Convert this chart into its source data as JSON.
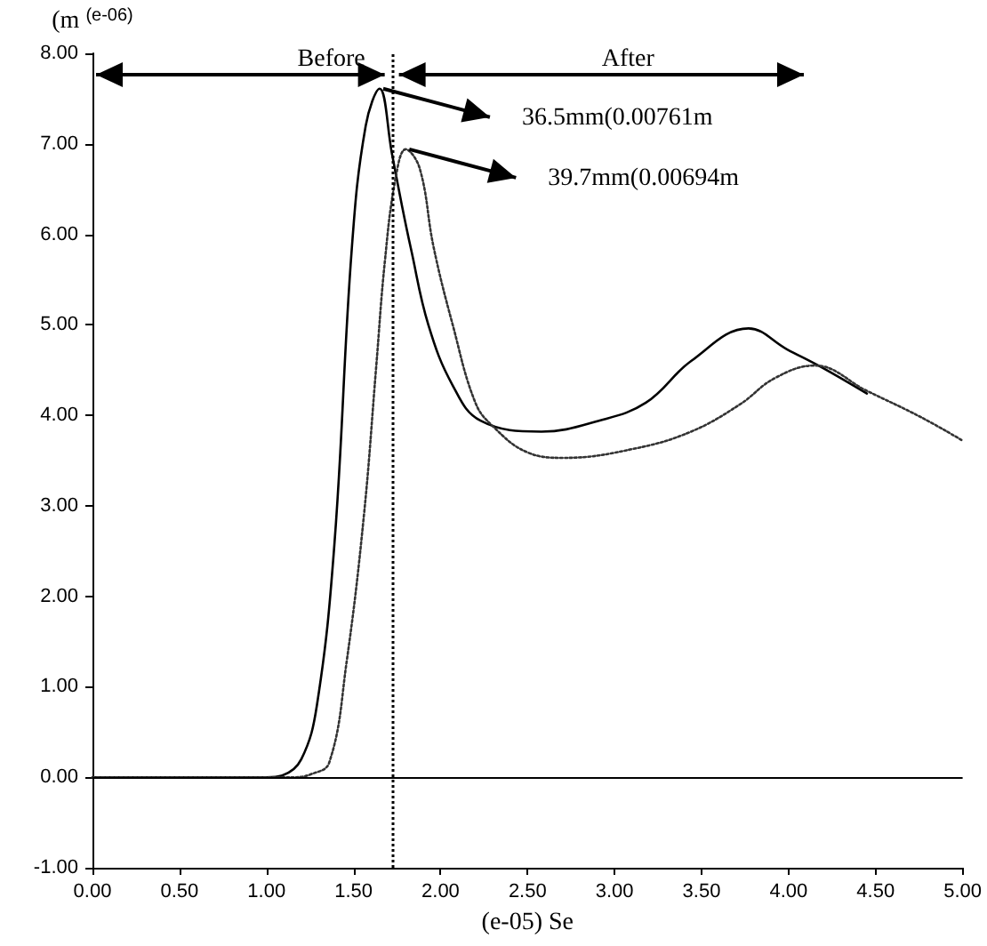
{
  "chart_data": {
    "type": "line",
    "xlabel": "(e-05) Se",
    "ylabel": "(m $^{(e-06)}$",
    "xlim": [
      0,
      5
    ],
    "ylim": [
      -1,
      8
    ],
    "xticks": [
      {
        "value": 0,
        "label": "0.00"
      },
      {
        "value": 0.5,
        "label": "0.50"
      },
      {
        "value": 1,
        "label": "1.00"
      },
      {
        "value": 1.5,
        "label": "1.50"
      },
      {
        "value": 2,
        "label": "2.00"
      },
      {
        "value": 2.5,
        "label": "2.50"
      },
      {
        "value": 3,
        "label": "3.00"
      },
      {
        "value": 3.5,
        "label": "3.50"
      },
      {
        "value": 4,
        "label": "4.00"
      },
      {
        "value": 4.5,
        "label": "4.50"
      },
      {
        "value": 5,
        "label": "5.00"
      }
    ],
    "yticks": [
      {
        "value": -1,
        "label": "-1.00"
      },
      {
        "value": 0,
        "label": "0.00"
      },
      {
        "value": 1,
        "label": "1.00"
      },
      {
        "value": 2,
        "label": "2.00"
      },
      {
        "value": 3,
        "label": "3.00"
      },
      {
        "value": 4,
        "label": "4.00"
      },
      {
        "value": 5,
        "label": "5.00"
      },
      {
        "value": 6,
        "label": "6.00"
      },
      {
        "value": 7,
        "label": "7.00"
      },
      {
        "value": 8,
        "label": "8.00"
      }
    ],
    "grid": false,
    "marker": "none",
    "series": [
      {
        "color": "#000000",
        "line_style": "solid",
        "x": [
          0,
          1.0,
          1.09,
          1.2,
          1.29,
          1.39,
          1.49,
          1.57,
          1.65,
          1.72,
          1.78,
          1.83,
          1.93,
          2.07,
          2.23,
          2.58,
          2.91,
          3.18,
          3.44,
          3.77,
          3.99,
          4.19,
          4.45
        ],
        "values": [
          0,
          0,
          0.02,
          0.2,
          0.8,
          2.57,
          5.84,
          7.2,
          7.61,
          6.9,
          6.3,
          5.84,
          5.0,
          4.33,
          3.94,
          3.82,
          3.94,
          4.14,
          4.6,
          4.96,
          4.73,
          4.53,
          4.24
        ]
      },
      {
        "color": "#333333",
        "line_style": "dotted",
        "x": [
          0,
          1.15,
          1.25,
          1.36,
          1.46,
          1.56,
          1.63,
          1.68,
          1.74,
          1.8,
          1.88,
          1.96,
          2.07,
          2.2,
          2.3,
          2.5,
          2.71,
          3.11,
          3.44,
          3.72,
          3.92,
          4.15,
          4.45,
          4.76,
          5.0
        ],
        "values": [
          0,
          0,
          0.03,
          0.16,
          1.27,
          2.9,
          4.53,
          5.7,
          6.6,
          6.94,
          6.73,
          5.86,
          5.0,
          4.14,
          3.88,
          3.59,
          3.53,
          3.63,
          3.82,
          4.12,
          4.41,
          4.55,
          4.27,
          3.98,
          3.72
        ]
      }
    ],
    "ref_lines": [
      {
        "axis": "x",
        "value": 1.72,
        "line_style": "dotted",
        "color": "#000000"
      },
      {
        "axis": "y",
        "value": 0,
        "line_style": "solid",
        "color": "#000000"
      }
    ],
    "annotations": [
      "Before",
      "After",
      {
        "text": "36.5mm(0.00761m",
        "x": 1.65,
        "y": 7.61
      },
      {
        "text": "39.7mm(0.00694m",
        "x": 1.8,
        "y": 6.94
      }
    ]
  }
}
